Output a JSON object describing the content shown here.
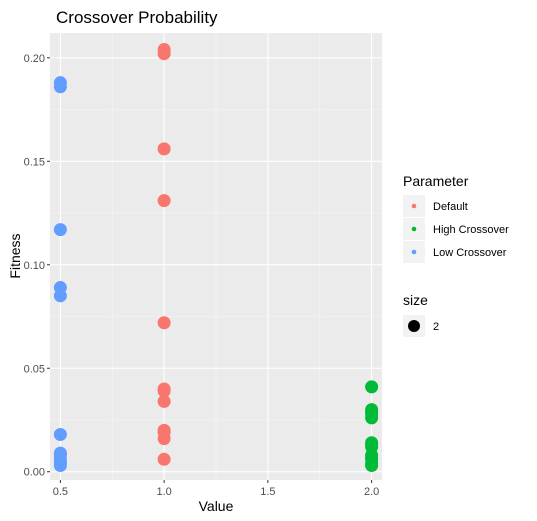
{
  "chart_data": {
    "type": "scatter",
    "title": "Crossover Probability",
    "xlabel": "Value",
    "ylabel": "Fitness",
    "xlim": [
      0.45,
      2.05
    ],
    "ylim": [
      -0.004,
      0.212
    ],
    "x_ticks": [
      0.5,
      1.0,
      1.5,
      2.0
    ],
    "x_tick_labels": [
      "0.5",
      "1.0",
      "1.5",
      "2.0"
    ],
    "y_ticks": [
      0.0,
      0.05,
      0.1,
      0.15,
      0.2
    ],
    "y_tick_labels": [
      "0.00",
      "0.05",
      "0.10",
      "0.15",
      "0.20"
    ],
    "grid": true,
    "legend_position": "right",
    "legend_title": "Parameter",
    "series": [
      {
        "name": "Default",
        "color": "#F8766D",
        "x": [
          1.0,
          1.0,
          1.0,
          1.0,
          1.0,
          1.0,
          1.0,
          1.0,
          1.0,
          1.0,
          1.0,
          1.0
        ],
        "y": [
          0.204,
          0.202,
          0.156,
          0.131,
          0.072,
          0.04,
          0.039,
          0.034,
          0.02,
          0.019,
          0.016,
          0.006
        ]
      },
      {
        "name": "High Crossover",
        "color": "#00BA38",
        "x": [
          2.0,
          2.0,
          2.0,
          2.0,
          2.0,
          2.0,
          2.0,
          2.0,
          2.0,
          2.0,
          2.0,
          2.0,
          2.0
        ],
        "y": [
          0.041,
          0.03,
          0.029,
          0.028,
          0.026,
          0.014,
          0.013,
          0.012,
          0.008,
          0.007,
          0.006,
          0.004,
          0.003
        ]
      },
      {
        "name": "Low Crossover",
        "color": "#619CFF",
        "x": [
          0.5,
          0.5,
          0.5,
          0.5,
          0.5,
          0.5,
          0.5,
          0.5,
          0.5,
          0.5,
          0.5,
          0.5
        ],
        "y": [
          0.188,
          0.186,
          0.117,
          0.089,
          0.085,
          0.018,
          0.009,
          0.008,
          0.006,
          0.005,
          0.004,
          0.003
        ]
      }
    ],
    "size_legend": {
      "title": "size",
      "label": "2"
    }
  }
}
